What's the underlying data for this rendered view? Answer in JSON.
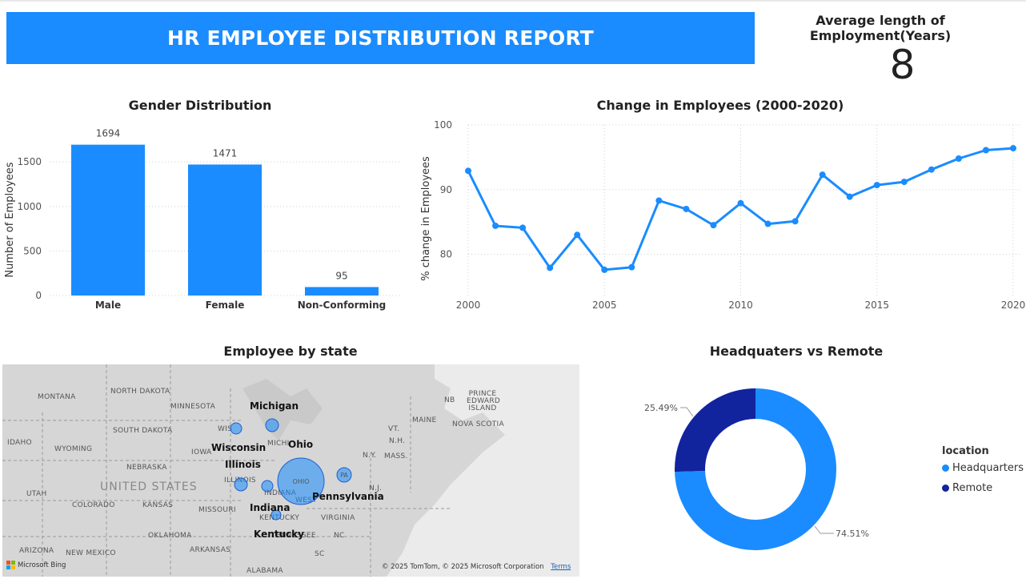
{
  "header": {
    "title": "HR EMPLOYEE DISTRIBUTION REPORT"
  },
  "kpi": {
    "title": "Average length of Employment(Years)",
    "value": "8"
  },
  "colors": {
    "primary": "#1a8cff",
    "dark": "#12239e",
    "banner": "#1a8cff"
  },
  "chart_data": [
    {
      "type": "bar",
      "title": "Gender Distribution",
      "categories": [
        "Male",
        "Female",
        "Non-Conforming"
      ],
      "values": [
        1694,
        1471,
        95
      ],
      "data_labels": [
        "1694",
        "1471",
        "95"
      ],
      "ylabel": "Number of Employees",
      "xlabel": "",
      "yticks": [
        0,
        500,
        1000,
        1500
      ],
      "ytick_labels": [
        "0",
        "500",
        "1000",
        "1500"
      ],
      "ylim": [
        0,
        1700
      ],
      "grid": true
    },
    {
      "type": "line",
      "title": "Change in Employees (2000-2020)",
      "ylabel": "% change in Employees",
      "xlabel": "",
      "x": [
        2000,
        2001,
        2002,
        2003,
        2004,
        2005,
        2006,
        2007,
        2008,
        2009,
        2010,
        2011,
        2012,
        2013,
        2014,
        2015,
        2016,
        2017,
        2018,
        2019,
        2020
      ],
      "y": [
        92.9,
        84.4,
        84.1,
        77.9,
        83.0,
        77.6,
        78.0,
        88.3,
        87.0,
        84.5,
        87.9,
        84.7,
        85.1,
        92.3,
        88.9,
        90.7,
        91.2,
        93.1,
        94.8,
        96.1,
        96.4
      ],
      "xticks": [
        2000,
        2005,
        2010,
        2015,
        2020
      ],
      "xtick_labels": [
        "2000",
        "2005",
        "2010",
        "2015",
        "2020"
      ],
      "yticks": [
        80,
        90,
        100
      ],
      "ytick_labels": [
        "80",
        "90",
        "100"
      ],
      "xlim": [
        2000,
        2020
      ],
      "ylim": [
        73.5,
        100
      ],
      "grid": true
    },
    {
      "type": "pie",
      "title": "Headquaters vs Remote",
      "categories": [
        "Headquarters",
        "Remote"
      ],
      "values": [
        74.51,
        25.49
      ],
      "data_labels": [
        "74.51%",
        "25.49%"
      ],
      "legend_title": "location",
      "legend_position": "right",
      "donut": true
    }
  ],
  "map": {
    "title": "Employee by state",
    "states": [
      {
        "name": "Michigan",
        "marker_label": ""
      },
      {
        "name": "Wisconsin",
        "marker_label": ""
      },
      {
        "name": "Illinois",
        "marker_label": ""
      },
      {
        "name": "Ohio",
        "marker_label": "OHIO"
      },
      {
        "name": "Pennsylvania",
        "marker_label": "PA"
      },
      {
        "name": "Indiana",
        "marker_label": ""
      },
      {
        "name": "Kentucky",
        "marker_label": ""
      }
    ],
    "background_labels": [
      "MONTANA",
      "NORTH DAKOTA",
      "MINNESOTA",
      "SOUTH DAKOTA",
      "WYOMING",
      "IDAHO",
      "NEBRASKA",
      "IOWA",
      "UNITED STATES",
      "UTAH",
      "COLORADO",
      "KANSAS",
      "MISSOURI",
      "OKLAHOMA",
      "ARIZONA",
      "NEW MEXICO",
      "ARKANSAS",
      "ALABAMA",
      "TENNESSEE",
      "VIRGINIA",
      "NC",
      "SC",
      "N.Y.",
      "VT.",
      "N.H.",
      "MASS.",
      "MAINE",
      "NB",
      "PRINCE EDWARD ISLAND",
      "NOVA SCOTIA",
      "N.J.",
      "WIS",
      "MICHI",
      "ILLINOIS",
      "INDIANA",
      "WEST",
      "KENTUCKY"
    ],
    "credit": "© 2025 TomTom, © 2025 Microsoft Corporation",
    "terms_label": "Terms",
    "brand_label": "Microsoft Bing"
  }
}
